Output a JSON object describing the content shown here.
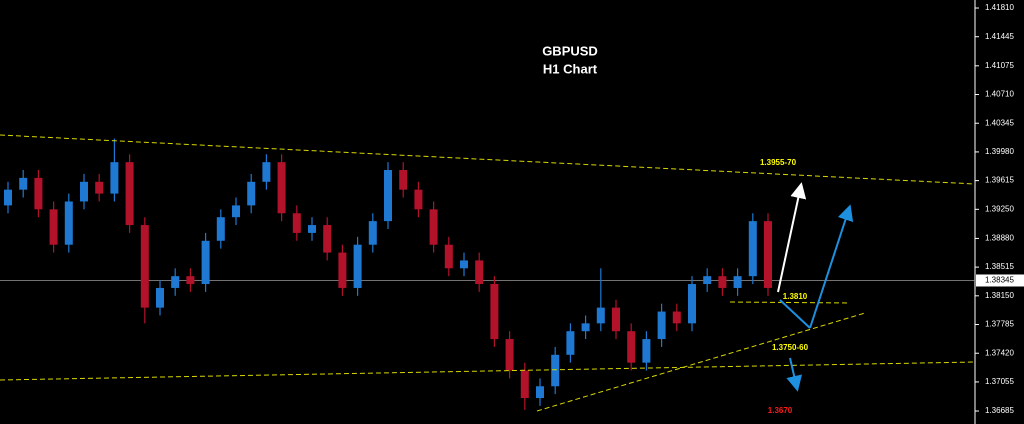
{
  "chart_data": {
    "type": "candlestick",
    "title": "GBPUSD",
    "subtitle": "H1 Chart",
    "up_color": "#1f78d1",
    "down_color": "#b3122b",
    "ylim": [
      1.3652,
      1.41912
    ],
    "yticks": [
      {
        "value": 1.4181,
        "label": "1.41810"
      },
      {
        "value": 1.41445,
        "label": "1.41445"
      },
      {
        "value": 1.41075,
        "label": "1.41075"
      },
      {
        "value": 1.4071,
        "label": "1.40710"
      },
      {
        "value": 1.40345,
        "label": "1.40345"
      },
      {
        "value": 1.3998,
        "label": "1.39980"
      },
      {
        "value": 1.39615,
        "label": "1.39615"
      },
      {
        "value": 1.3925,
        "label": "1.39250"
      },
      {
        "value": 1.3888,
        "label": "1.38880"
      },
      {
        "value": 1.38515,
        "label": "1.38515"
      },
      {
        "value": 1.3815,
        "label": "1.38150"
      },
      {
        "value": 1.37785,
        "label": "1.37785"
      },
      {
        "value": 1.3742,
        "label": "1.37420"
      },
      {
        "value": 1.37055,
        "label": "1.37055"
      },
      {
        "value": 1.36685,
        "label": "1.36685"
      }
    ],
    "current_price": {
      "value": 1.38345,
      "label": "1.38345"
    },
    "open": [
      1.393,
      1.395,
      1.3965,
      1.3925,
      1.388,
      1.3935,
      1.396,
      1.3945,
      1.3985,
      1.3905,
      1.38,
      1.3825,
      1.384,
      1.383,
      1.3885,
      1.3915,
      1.393,
      1.396,
      1.3985,
      1.392,
      1.3895,
      1.3905,
      1.387,
      1.3825,
      1.388,
      1.391,
      1.3975,
      1.395,
      1.3925,
      1.388,
      1.385,
      1.386,
      1.383,
      1.376,
      1.372,
      1.3685,
      1.37,
      1.374,
      1.377,
      1.378,
      1.38,
      1.377,
      1.373,
      1.376,
      1.3795,
      1.378,
      1.383,
      1.384,
      1.3825,
      1.384,
      1.391
    ],
    "high": [
      1.396,
      1.3975,
      1.3975,
      1.3935,
      1.3945,
      1.397,
      1.397,
      1.4015,
      1.3995,
      1.3915,
      1.3835,
      1.385,
      1.385,
      1.3895,
      1.3925,
      1.394,
      1.397,
      1.3995,
      1.3995,
      1.393,
      1.3915,
      1.3915,
      1.388,
      1.389,
      1.392,
      1.3985,
      1.3985,
      1.396,
      1.3935,
      1.389,
      1.387,
      1.387,
      1.384,
      1.377,
      1.373,
      1.371,
      1.375,
      1.378,
      1.379,
      1.385,
      1.381,
      1.378,
      1.377,
      1.3805,
      1.3805,
      1.384,
      1.385,
      1.385,
      1.385,
      1.392,
      1.392
    ],
    "low": [
      1.392,
      1.394,
      1.3915,
      1.387,
      1.387,
      1.3925,
      1.3935,
      1.3935,
      1.3895,
      1.378,
      1.379,
      1.3815,
      1.382,
      1.382,
      1.3875,
      1.3905,
      1.392,
      1.395,
      1.391,
      1.3885,
      1.3885,
      1.386,
      1.3815,
      1.3815,
      1.387,
      1.39,
      1.394,
      1.3915,
      1.387,
      1.384,
      1.384,
      1.382,
      1.375,
      1.371,
      1.367,
      1.3675,
      1.369,
      1.373,
      1.376,
      1.377,
      1.376,
      1.372,
      1.372,
      1.375,
      1.377,
      1.377,
      1.382,
      1.3815,
      1.3815,
      1.383,
      1.3815
    ],
    "close": [
      1.395,
      1.3965,
      1.3925,
      1.388,
      1.3935,
      1.396,
      1.3945,
      1.3985,
      1.3905,
      1.38,
      1.3825,
      1.384,
      1.383,
      1.3885,
      1.3915,
      1.393,
      1.396,
      1.3985,
      1.392,
      1.3895,
      1.3905,
      1.387,
      1.3825,
      1.388,
      1.391,
      1.3975,
      1.395,
      1.3925,
      1.388,
      1.385,
      1.386,
      1.383,
      1.376,
      1.372,
      1.3685,
      1.37,
      1.374,
      1.377,
      1.378,
      1.38,
      1.377,
      1.373,
      1.376,
      1.3795,
      1.378,
      1.383,
      1.384,
      1.3825,
      1.384,
      1.391,
      1.3825
    ],
    "annotations": [
      {
        "text": "1.3955-70",
        "color": "#ffff00"
      },
      {
        "text": "1.3810",
        "color": "#ffff00"
      },
      {
        "text": "1.3750-60",
        "color": "#ffff00"
      },
      {
        "text": "1.3670",
        "color": "#ff1a1a"
      }
    ]
  }
}
